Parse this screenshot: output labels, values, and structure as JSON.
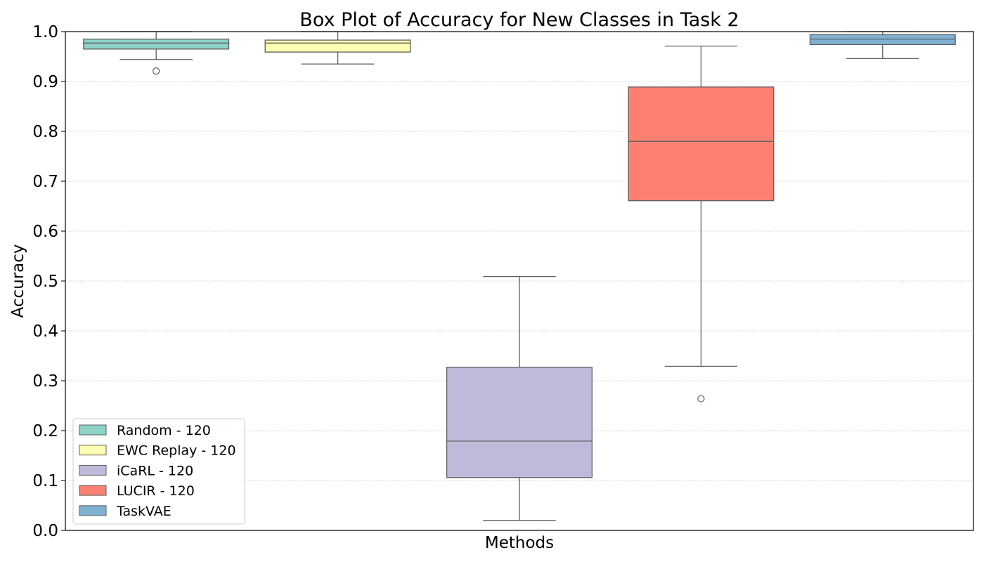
{
  "chart_data": {
    "type": "box",
    "title": "Box Plot of Accuracy for New Classes in Task 2",
    "xlabel": "Methods",
    "ylabel": "Accuracy",
    "ylim": [
      0,
      1
    ],
    "yticks": [
      "0.0",
      "0.1",
      "0.2",
      "0.3",
      "0.4",
      "0.5",
      "0.6",
      "0.7",
      "0.8",
      "0.9",
      "1.0"
    ],
    "grid": "horizontal-dotted",
    "legend_position": "lower-left",
    "series": [
      {
        "name": "Random - 120",
        "color": "#8dd3c7",
        "whisker_low": 0.944,
        "q1": 0.965,
        "median": 0.977,
        "q3": 0.985,
        "whisker_high": 1.0,
        "outliers": [
          0.921
        ]
      },
      {
        "name": "EWC Replay - 120",
        "color": "#ffffb3",
        "whisker_low": 0.935,
        "q1": 0.959,
        "median": 0.977,
        "q3": 0.983,
        "whisker_high": 1.0,
        "outliers": []
      },
      {
        "name": "iCaRL - 120",
        "color": "#bebada",
        "whisker_low": 0.02,
        "q1": 0.106,
        "median": 0.179,
        "q3": 0.327,
        "whisker_high": 0.509,
        "outliers": []
      },
      {
        "name": "LUCIR - 120",
        "color": "#fb8072",
        "whisker_low": 0.329,
        "q1": 0.661,
        "median": 0.78,
        "q3": 0.889,
        "whisker_high": 0.971,
        "outliers": [
          0.264
        ]
      },
      {
        "name": "TaskVAE",
        "color": "#80b1d3",
        "whisker_low": 0.946,
        "q1": 0.974,
        "median": 0.985,
        "q3": 0.994,
        "whisker_high": 1.0,
        "outliers": []
      }
    ]
  }
}
